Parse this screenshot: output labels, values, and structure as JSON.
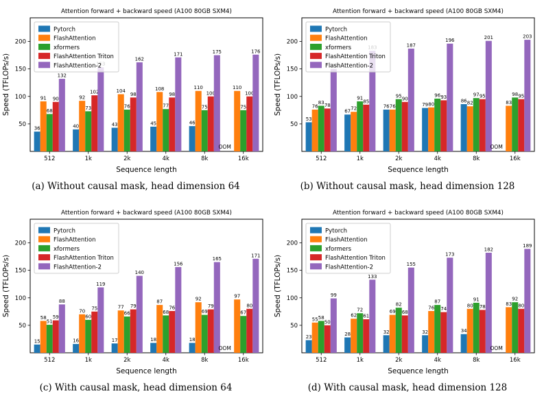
{
  "colors": {
    "pytorch": "#1f77b4",
    "flashattention": "#ff7f0e",
    "xformers": "#2ca02c",
    "flashattention_triton": "#d62728",
    "flashattention_2": "#9467bd"
  },
  "chart_data": [
    {
      "type": "bar",
      "title": "Attention forward + backward speed (A100 80GB SXM4)",
      "xlabel": "Sequence length",
      "ylabel": "Speed (TFLOPs/s)",
      "caption": "(a) Without causal mask, head dimension 64",
      "categories": [
        "512",
        "1k",
        "2k",
        "4k",
        "8k",
        "16k"
      ],
      "ylim": [
        0,
        243
      ],
      "yticks": [
        50,
        100,
        150,
        200
      ],
      "grid": false,
      "legend_position": "upper left",
      "series": [
        {
          "name": "Pytorch",
          "color": "#1f77b4",
          "values": [
            36,
            40,
            43,
            45,
            46,
            null
          ]
        },
        {
          "name": "FlashAttention",
          "color": "#ff7f0e",
          "values": [
            91,
            92,
            104,
            108,
            110,
            110
          ]
        },
        {
          "name": "xformers",
          "color": "#2ca02c",
          "values": [
            68,
            73,
            76,
            77,
            75,
            75
          ]
        },
        {
          "name": "FlashAttention Triton",
          "color": "#d62728",
          "values": [
            90,
            102,
            98,
            98,
            100,
            100
          ]
        },
        {
          "name": "FlashAttention-2",
          "color": "#9467bd",
          "values": [
            132,
            153,
            162,
            171,
            175,
            176
          ]
        }
      ],
      "annotations": [
        {
          "text": "OOM",
          "category": "16k",
          "series": "Pytorch"
        }
      ]
    },
    {
      "type": "bar",
      "title": "Attention forward + backward speed (A100 80GB SXM4)",
      "xlabel": "Sequence length",
      "ylabel": "Speed (TFLOPs/s)",
      "caption": "(b) Without causal mask, head dimension 128",
      "categories": [
        "512",
        "1k",
        "2k",
        "4k",
        "8k",
        "16k"
      ],
      "ylim": [
        0,
        243
      ],
      "yticks": [
        50,
        100,
        150,
        200
      ],
      "grid": false,
      "legend_position": "upper left",
      "series": [
        {
          "name": "Pytorch",
          "color": "#1f77b4",
          "values": [
            53,
            67,
            76,
            79,
            86,
            null
          ]
        },
        {
          "name": "FlashAttention",
          "color": "#ff7f0e",
          "values": [
            76,
            72,
            76,
            80,
            82,
            83
          ]
        },
        {
          "name": "xformers",
          "color": "#2ca02c",
          "values": [
            83,
            91,
            95,
            96,
            97,
            98
          ]
        },
        {
          "name": "FlashAttention Triton",
          "color": "#d62728",
          "values": [
            78,
            85,
            90,
            93,
            95,
            95
          ]
        },
        {
          "name": "FlashAttention-2",
          "color": "#9467bd",
          "values": [
            150,
            183,
            187,
            196,
            201,
            203
          ]
        }
      ],
      "annotations": [
        {
          "text": "OOM",
          "category": "16k",
          "series": "Pytorch"
        }
      ]
    },
    {
      "type": "bar",
      "title": "Attention forward + backward speed (A100 80GB SXM4)",
      "xlabel": "Sequence length",
      "ylabel": "Speed (TFLOPs/s)",
      "caption": "(c) With causal mask, head dimension 64",
      "categories": [
        "512",
        "1k",
        "2k",
        "4k",
        "8k",
        "16k"
      ],
      "ylim": [
        0,
        243
      ],
      "yticks": [
        50,
        100,
        150,
        200
      ],
      "grid": false,
      "legend_position": "upper left",
      "series": [
        {
          "name": "Pytorch",
          "color": "#1f77b4",
          "values": [
            15,
            16,
            17,
            18,
            18,
            null
          ]
        },
        {
          "name": "FlashAttention",
          "color": "#ff7f0e",
          "values": [
            58,
            70,
            77,
            87,
            92,
            97
          ]
        },
        {
          "name": "xformers",
          "color": "#2ca02c",
          "values": [
            51,
            60,
            66,
            68,
            69,
            67
          ]
        },
        {
          "name": "FlashAttention Triton",
          "color": "#d62728",
          "values": [
            59,
            75,
            79,
            76,
            79,
            80
          ]
        },
        {
          "name": "FlashAttention-2",
          "color": "#9467bd",
          "values": [
            88,
            119,
            140,
            156,
            165,
            171
          ]
        }
      ],
      "annotations": [
        {
          "text": "OOM",
          "category": "16k",
          "series": "Pytorch"
        }
      ]
    },
    {
      "type": "bar",
      "title": "Attention forward + backward speed (A100 80GB SXM4)",
      "xlabel": "Sequence length",
      "ylabel": "Speed (TFLOPs/s)",
      "caption": "(d) With causal mask, head dimension 128",
      "categories": [
        "512",
        "1k",
        "2k",
        "4k",
        "8k",
        "16k"
      ],
      "ylim": [
        0,
        243
      ],
      "yticks": [
        50,
        100,
        150,
        200
      ],
      "grid": false,
      "legend_position": "upper left",
      "series": [
        {
          "name": "Pytorch",
          "color": "#1f77b4",
          "values": [
            23,
            28,
            32,
            32,
            34,
            null
          ]
        },
        {
          "name": "FlashAttention",
          "color": "#ff7f0e",
          "values": [
            55,
            62,
            69,
            76,
            80,
            83
          ]
        },
        {
          "name": "xformers",
          "color": "#2ca02c",
          "values": [
            58,
            72,
            82,
            87,
            91,
            92
          ]
        },
        {
          "name": "FlashAttention Triton",
          "color": "#d62728",
          "values": [
            50,
            61,
            68,
            74,
            78,
            80
          ]
        },
        {
          "name": "FlashAttention-2",
          "color": "#9467bd",
          "values": [
            99,
            133,
            155,
            173,
            182,
            189
          ]
        }
      ],
      "annotations": [
        {
          "text": "OOM",
          "category": "16k",
          "series": "Pytorch"
        }
      ]
    }
  ]
}
